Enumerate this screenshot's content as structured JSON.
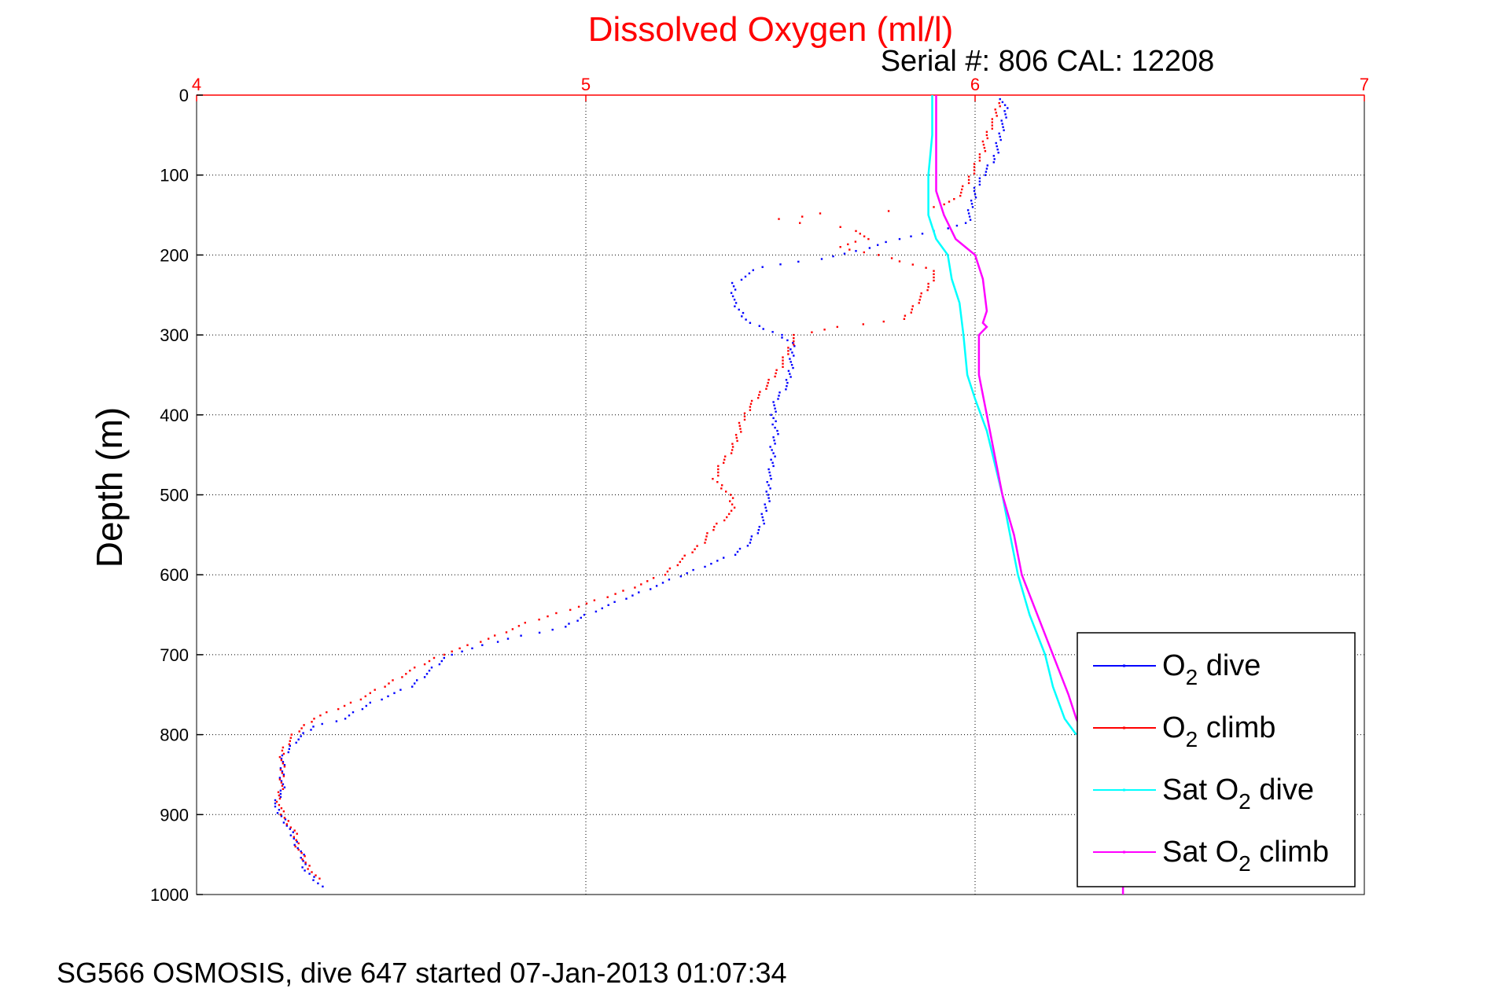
{
  "chart_data": {
    "type": "scatter",
    "title": "Dissolved Oxygen (ml/l)",
    "subtitle": "Serial #: 806  CAL: 12208",
    "ylabel": "Depth (m)",
    "caption": "SG566 OSMOSIS, dive 647 started 07-Jan-2013 01:07:34",
    "xlim": [
      4,
      7
    ],
    "ylim": [
      0,
      1000
    ],
    "y_reversed": true,
    "x_axis_position": "top",
    "x_ticks": [
      "4",
      "5",
      "6",
      "7"
    ],
    "y_ticks": [
      "0",
      "100",
      "200",
      "300",
      "400",
      "500",
      "600",
      "700",
      "800",
      "900",
      "1000"
    ],
    "grid": true,
    "legend_position": "bottom-right",
    "series": [
      {
        "name": "O2 dive",
        "legend_main": "O",
        "legend_sub": "2",
        "legend_rest": " dive",
        "color": "#0000ff",
        "style": "dots",
        "points": [
          [
            6.07,
            5
          ],
          [
            6.08,
            20
          ],
          [
            6.07,
            40
          ],
          [
            6.06,
            60
          ],
          [
            6.05,
            80
          ],
          [
            6.02,
            100
          ],
          [
            6.0,
            120
          ],
          [
            5.99,
            140
          ],
          [
            5.98,
            160
          ],
          [
            5.9,
            170
          ],
          [
            5.8,
            180
          ],
          [
            5.7,
            195
          ],
          [
            5.6,
            205
          ],
          [
            5.45,
            215
          ],
          [
            5.38,
            235
          ],
          [
            5.38,
            260
          ],
          [
            5.42,
            285
          ],
          [
            5.5,
            300
          ],
          [
            5.53,
            310
          ],
          [
            5.53,
            330
          ],
          [
            5.52,
            360
          ],
          [
            5.49,
            380
          ],
          [
            5.48,
            400
          ],
          [
            5.49,
            420
          ],
          [
            5.48,
            440
          ],
          [
            5.48,
            460
          ],
          [
            5.47,
            480
          ],
          [
            5.47,
            500
          ],
          [
            5.46,
            520
          ],
          [
            5.45,
            540
          ],
          [
            5.42,
            560
          ],
          [
            5.38,
            575
          ],
          [
            5.3,
            590
          ],
          [
            5.2,
            610
          ],
          [
            5.1,
            630
          ],
          [
            5.0,
            650
          ],
          [
            4.95,
            665
          ],
          [
            4.8,
            680
          ],
          [
            4.65,
            700
          ],
          [
            4.6,
            720
          ],
          [
            4.55,
            740
          ],
          [
            4.45,
            760
          ],
          [
            4.38,
            780
          ],
          [
            4.3,
            790
          ],
          [
            4.25,
            810
          ],
          [
            4.22,
            830
          ],
          [
            4.22,
            850
          ],
          [
            4.22,
            870
          ],
          [
            4.2,
            890
          ],
          [
            4.23,
            910
          ],
          [
            4.25,
            930
          ],
          [
            4.27,
            950
          ],
          [
            4.28,
            970
          ],
          [
            4.32,
            990
          ]
        ]
      },
      {
        "name": "O2 climb",
        "legend_main": "O",
        "legend_sub": "2",
        "legend_rest": " climb",
        "color": "#ff0000",
        "style": "dots",
        "points": [
          [
            6.06,
            10
          ],
          [
            6.05,
            30
          ],
          [
            6.03,
            50
          ],
          [
            6.02,
            70
          ],
          [
            6.0,
            90
          ],
          [
            5.98,
            110
          ],
          [
            5.95,
            130
          ],
          [
            5.9,
            140
          ],
          [
            5.78,
            145
          ],
          [
            5.6,
            148
          ],
          [
            5.55,
            152
          ],
          [
            5.5,
            155
          ],
          [
            5.55,
            160
          ],
          [
            5.65,
            165
          ],
          [
            5.7,
            170
          ],
          [
            5.72,
            180
          ],
          [
            5.65,
            190
          ],
          [
            5.75,
            200
          ],
          [
            5.9,
            220
          ],
          [
            5.88,
            240
          ],
          [
            5.85,
            260
          ],
          [
            5.82,
            280
          ],
          [
            5.65,
            290
          ],
          [
            5.54,
            300
          ],
          [
            5.52,
            320
          ],
          [
            5.5,
            340
          ],
          [
            5.47,
            360
          ],
          [
            5.42,
            390
          ],
          [
            5.4,
            410
          ],
          [
            5.38,
            440
          ],
          [
            5.35,
            460
          ],
          [
            5.33,
            480
          ],
          [
            5.37,
            500
          ],
          [
            5.38,
            520
          ],
          [
            5.33,
            540
          ],
          [
            5.3,
            560
          ],
          [
            5.25,
            580
          ],
          [
            5.2,
            600
          ],
          [
            5.1,
            620
          ],
          [
            4.98,
            640
          ],
          [
            4.85,
            660
          ],
          [
            4.75,
            680
          ],
          [
            4.63,
            700
          ],
          [
            4.55,
            720
          ],
          [
            4.48,
            740
          ],
          [
            4.4,
            760
          ],
          [
            4.3,
            780
          ],
          [
            4.25,
            800
          ],
          [
            4.22,
            820
          ],
          [
            4.22,
            840
          ],
          [
            4.22,
            860
          ],
          [
            4.21,
            880
          ],
          [
            4.22,
            900
          ],
          [
            4.25,
            920
          ],
          [
            4.26,
            940
          ],
          [
            4.28,
            960
          ],
          [
            4.31,
            980
          ]
        ]
      },
      {
        "name": "Sat O2 dive",
        "legend_main": "Sat O",
        "legend_sub": "2",
        "legend_rest": " dive",
        "color": "#00ffff",
        "style": "line",
        "points": [
          [
            5.89,
            0
          ],
          [
            5.89,
            50
          ],
          [
            5.88,
            100
          ],
          [
            5.88,
            150
          ],
          [
            5.9,
            180
          ],
          [
            5.93,
            200
          ],
          [
            5.94,
            230
          ],
          [
            5.96,
            260
          ],
          [
            5.97,
            300
          ],
          [
            5.98,
            350
          ],
          [
            6.0,
            380
          ],
          [
            6.03,
            420
          ],
          [
            6.05,
            460
          ],
          [
            6.07,
            500
          ],
          [
            6.09,
            550
          ],
          [
            6.11,
            600
          ],
          [
            6.14,
            650
          ],
          [
            6.18,
            700
          ],
          [
            6.2,
            740
          ],
          [
            6.23,
            780
          ],
          [
            6.26,
            800
          ]
        ]
      },
      {
        "name": "Sat O2 climb",
        "legend_main": "Sat O",
        "legend_sub": "2",
        "legend_rest": " climb",
        "color": "#ff00ff",
        "style": "line",
        "points": [
          [
            5.9,
            0
          ],
          [
            5.9,
            60
          ],
          [
            5.9,
            120
          ],
          [
            5.92,
            150
          ],
          [
            5.95,
            180
          ],
          [
            6.0,
            200
          ],
          [
            6.02,
            230
          ],
          [
            6.03,
            270
          ],
          [
            6.02,
            285
          ],
          [
            6.03,
            290
          ],
          [
            6.01,
            300
          ],
          [
            6.01,
            350
          ],
          [
            6.03,
            400
          ],
          [
            6.05,
            450
          ],
          [
            6.07,
            500
          ],
          [
            6.1,
            550
          ],
          [
            6.12,
            600
          ],
          [
            6.16,
            650
          ],
          [
            6.2,
            700
          ],
          [
            6.24,
            750
          ],
          [
            6.26,
            780
          ],
          [
            6.3,
            820
          ],
          [
            6.36,
            880
          ],
          [
            6.38,
            960
          ],
          [
            6.38,
            1000
          ]
        ]
      }
    ]
  }
}
